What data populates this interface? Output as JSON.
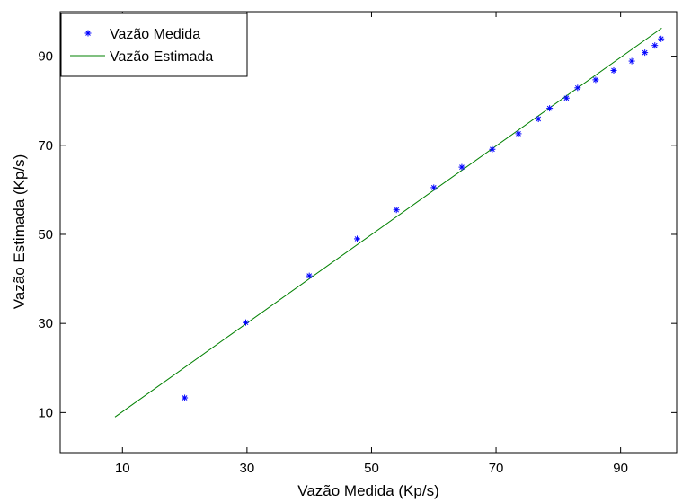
{
  "chart_data": {
    "type": "scatter",
    "title": "",
    "xlabel": "Vazão Medida (Kp/s)",
    "ylabel": "Vazão Estimada (Kp/s)",
    "xlim": [
      0,
      99
    ],
    "ylim": [
      1,
      100
    ],
    "xticks": [
      10,
      30,
      50,
      70,
      90
    ],
    "yticks": [
      10,
      30,
      50,
      70,
      90
    ],
    "grid": false,
    "legend_position": "top-left",
    "series": [
      {
        "name": "Vazão Medida",
        "kind": "markers",
        "marker": "*",
        "color": "#0000ff",
        "x": [
          20.0,
          29.8,
          40.0,
          47.7,
          54.0,
          60.0,
          64.5,
          69.4,
          73.6,
          76.8,
          78.6,
          81.3,
          83.1,
          86.0,
          88.9,
          91.8,
          93.9,
          95.5,
          96.5
        ],
        "y": [
          13.3,
          30.2,
          40.7,
          49.0,
          55.5,
          60.5,
          65.1,
          69.1,
          72.6,
          75.9,
          78.3,
          80.6,
          82.9,
          84.7,
          86.8,
          88.9,
          90.8,
          92.4,
          93.9
        ]
      },
      {
        "name": "Vazão Estimada",
        "kind": "line",
        "color": "#008000",
        "x": [
          8.8,
          96.6
        ],
        "y": [
          9.0,
          96.3
        ]
      }
    ]
  }
}
